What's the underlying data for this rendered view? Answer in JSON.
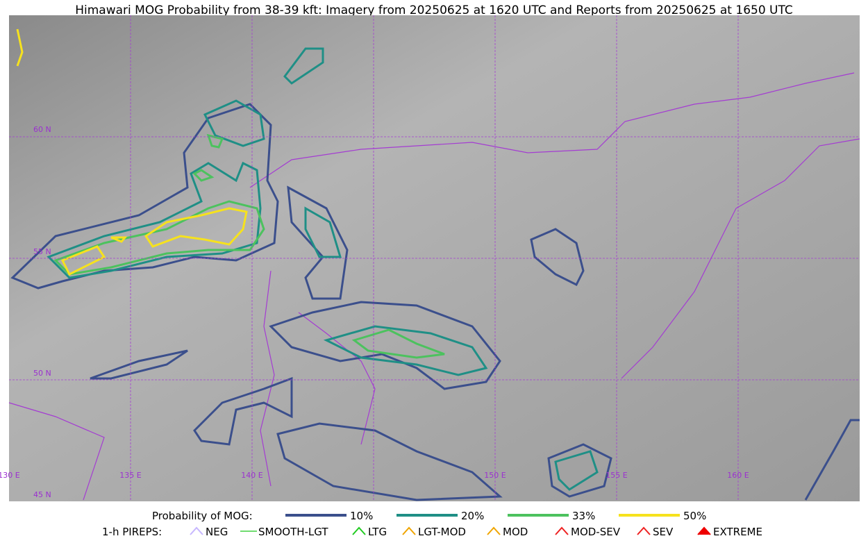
{
  "header": {
    "title": "Himawari MOG Probability from 38-39 kft: Imagery from 20250625 at 1620 UTC and Reports from 20250625 at 1650 UTC"
  },
  "map": {
    "lat_labels": [
      "60 N",
      "55 N",
      "50 N",
      "45 N"
    ],
    "lon_labels": [
      "130 E",
      "135 E",
      "140 E",
      "150 E",
      "155 E",
      "160 E"
    ]
  },
  "legend": {
    "probability_title": "Probability of MOG:",
    "probability_levels": [
      "10%",
      "20%",
      "33%",
      "50%"
    ],
    "pirep_title": "1-h PIREPS:",
    "pirep_types": [
      "NEG",
      "SMOOTH-LGT",
      "LTG",
      "LGT-MOD",
      "MOD",
      "MOD-SEV",
      "SEV",
      "EXTREME"
    ]
  }
}
